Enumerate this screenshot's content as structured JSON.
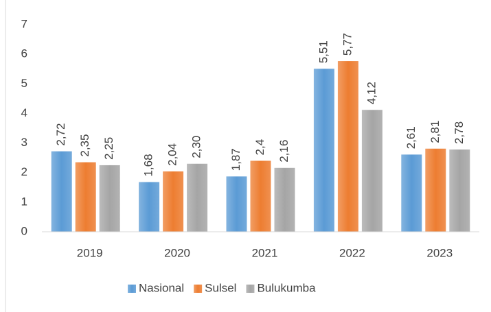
{
  "chart_data": {
    "type": "bar",
    "categories": [
      "2019",
      "2020",
      "2021",
      "2022",
      "2023"
    ],
    "series": [
      {
        "name": "Nasional",
        "color": "#5b9bd5",
        "values": [
          2.72,
          1.68,
          1.87,
          5.51,
          2.61
        ],
        "value_labels": [
          "2,72",
          "1,68",
          "1,87",
          "5,51",
          "2,61"
        ]
      },
      {
        "name": "Sulsel",
        "color": "#ed7d31",
        "values": [
          2.35,
          2.04,
          2.4,
          5.77,
          2.81
        ],
        "value_labels": [
          "2,35",
          "2,04",
          "2,4",
          "5,77",
          "2,81"
        ]
      },
      {
        "name": "Bulukumba",
        "color": "#a5a5a5",
        "values": [
          2.25,
          2.3,
          2.16,
          4.12,
          2.78
        ],
        "value_labels": [
          "2,25",
          "2,30",
          "2,16",
          "4,12",
          "2,78"
        ]
      }
    ],
    "ylim": [
      0,
      7
    ],
    "yticks": [
      0,
      1,
      2,
      3,
      4,
      5,
      6,
      7
    ],
    "grid": false,
    "legend": "bottom"
  }
}
